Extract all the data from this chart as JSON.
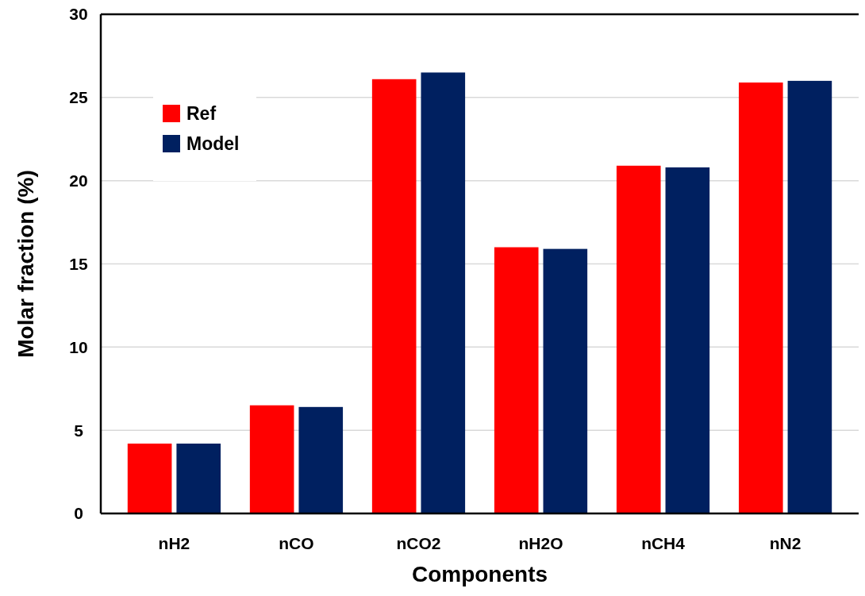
{
  "chart_data": {
    "type": "bar",
    "xlabel": "Components",
    "ylabel": "Molar fraction (%)",
    "categories": [
      "nH2",
      "nCO",
      "nCO2",
      "nH2O",
      "nCH4",
      "nN2"
    ],
    "series": [
      {
        "name": "Ref",
        "color": "#ff0000",
        "values": [
          4.2,
          6.5,
          26.1,
          16.0,
          20.9,
          25.9
        ]
      },
      {
        "name": "Model",
        "color": "#002060",
        "values": [
          4.2,
          6.4,
          26.5,
          15.9,
          20.8,
          26.0
        ]
      }
    ],
    "ylim": [
      0,
      30
    ],
    "yticks": [
      0,
      5,
      10,
      15,
      20,
      25,
      30
    ],
    "grid": "y",
    "legend": "top left"
  }
}
